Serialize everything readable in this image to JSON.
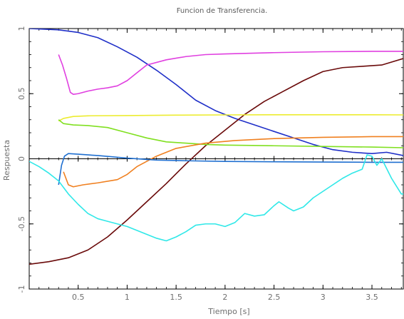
{
  "chart_data": {
    "type": "line",
    "title": "Funcion de Transferencia.",
    "xlabel": "Tiempo [s]",
    "ylabel": "Respuesta",
    "xlim": [
      0.0,
      3.82
    ],
    "ylim": [
      -1.0,
      1.0
    ],
    "xticks": [
      0.5,
      1,
      1.5,
      2,
      2.5,
      3,
      3.5
    ],
    "xtick_labels": [
      "0.5",
      "1",
      "1.5",
      "2",
      "2.5",
      "3",
      "3.5"
    ],
    "yticks": [
      -1,
      -0.5,
      0,
      0.5,
      1
    ],
    "ytick_labels": [
      "-1",
      "-0.5",
      "0",
      "0.5",
      "1"
    ],
    "grid": false,
    "zero_line": true,
    "series": [
      {
        "color": "#1f2fc8",
        "points": [
          [
            0.0,
            1.0
          ],
          [
            0.3,
            0.99
          ],
          [
            0.5,
            0.97
          ],
          [
            0.7,
            0.93
          ],
          [
            0.9,
            0.86
          ],
          [
            1.1,
            0.78
          ],
          [
            1.3,
            0.68
          ],
          [
            1.5,
            0.57
          ],
          [
            1.7,
            0.45
          ],
          [
            1.9,
            0.37
          ],
          [
            2.1,
            0.31
          ],
          [
            2.3,
            0.26
          ],
          [
            2.5,
            0.21
          ],
          [
            2.7,
            0.16
          ],
          [
            2.9,
            0.11
          ],
          [
            3.1,
            0.07
          ],
          [
            3.3,
            0.05
          ],
          [
            3.5,
            0.04
          ],
          [
            3.65,
            0.05
          ],
          [
            3.82,
            0.025
          ]
        ]
      },
      {
        "color": "#e040e0",
        "points": [
          [
            0.3,
            0.8
          ],
          [
            0.34,
            0.72
          ],
          [
            0.38,
            0.62
          ],
          [
            0.42,
            0.51
          ],
          [
            0.45,
            0.495
          ],
          [
            0.5,
            0.5
          ],
          [
            0.6,
            0.52
          ],
          [
            0.7,
            0.535
          ],
          [
            0.8,
            0.545
          ],
          [
            0.9,
            0.56
          ],
          [
            1.0,
            0.6
          ],
          [
            1.1,
            0.66
          ],
          [
            1.2,
            0.72
          ],
          [
            1.4,
            0.76
          ],
          [
            1.6,
            0.785
          ],
          [
            1.8,
            0.8
          ],
          [
            2.0,
            0.805
          ],
          [
            2.5,
            0.815
          ],
          [
            3.0,
            0.822
          ],
          [
            3.5,
            0.825
          ],
          [
            3.82,
            0.825
          ]
        ]
      },
      {
        "color": "#6a0a0a",
        "points": [
          [
            0.0,
            -0.81
          ],
          [
            0.2,
            -0.79
          ],
          [
            0.4,
            -0.76
          ],
          [
            0.6,
            -0.7
          ],
          [
            0.8,
            -0.6
          ],
          [
            1.0,
            -0.47
          ],
          [
            1.2,
            -0.33
          ],
          [
            1.4,
            -0.19
          ],
          [
            1.6,
            -0.04
          ],
          [
            1.8,
            0.1
          ],
          [
            2.0,
            0.22
          ],
          [
            2.2,
            0.34
          ],
          [
            2.4,
            0.44
          ],
          [
            2.6,
            0.52
          ],
          [
            2.8,
            0.6
          ],
          [
            3.0,
            0.67
          ],
          [
            3.2,
            0.7
          ],
          [
            3.4,
            0.71
          ],
          [
            3.6,
            0.72
          ],
          [
            3.82,
            0.77
          ]
        ]
      },
      {
        "color": "#ecec30",
        "points": [
          [
            0.3,
            0.29
          ],
          [
            0.35,
            0.31
          ],
          [
            0.45,
            0.325
          ],
          [
            0.6,
            0.33
          ],
          [
            1.0,
            0.332
          ],
          [
            1.5,
            0.335
          ],
          [
            2.0,
            0.337
          ],
          [
            2.5,
            0.338
          ],
          [
            3.0,
            0.338
          ],
          [
            3.5,
            0.338
          ],
          [
            3.82,
            0.337
          ]
        ]
      },
      {
        "color": "#80e020",
        "points": [
          [
            0.3,
            0.3
          ],
          [
            0.35,
            0.27
          ],
          [
            0.45,
            0.26
          ],
          [
            0.6,
            0.255
          ],
          [
            0.8,
            0.24
          ],
          [
            1.0,
            0.2
          ],
          [
            1.2,
            0.16
          ],
          [
            1.4,
            0.13
          ],
          [
            1.6,
            0.12
          ],
          [
            1.8,
            0.11
          ],
          [
            2.0,
            0.105
          ],
          [
            2.5,
            0.1
          ],
          [
            3.0,
            0.095
          ],
          [
            3.5,
            0.09
          ],
          [
            3.82,
            0.085
          ]
        ]
      },
      {
        "color": "#f08020",
        "points": [
          [
            0.35,
            -0.1
          ],
          [
            0.4,
            -0.2
          ],
          [
            0.45,
            -0.215
          ],
          [
            0.55,
            -0.2
          ],
          [
            0.7,
            -0.185
          ],
          [
            0.9,
            -0.16
          ],
          [
            1.0,
            -0.12
          ],
          [
            1.1,
            -0.06
          ],
          [
            1.3,
            0.02
          ],
          [
            1.5,
            0.08
          ],
          [
            1.8,
            0.12
          ],
          [
            2.1,
            0.14
          ],
          [
            2.5,
            0.155
          ],
          [
            3.0,
            0.165
          ],
          [
            3.5,
            0.17
          ],
          [
            3.82,
            0.17
          ]
        ]
      },
      {
        "color": "#1f6fd0",
        "points": [
          [
            0.3,
            -0.2
          ],
          [
            0.33,
            -0.05
          ],
          [
            0.36,
            0.02
          ],
          [
            0.4,
            0.04
          ],
          [
            0.5,
            0.035
          ],
          [
            0.7,
            0.025
          ],
          [
            1.0,
            0.005
          ],
          [
            1.3,
            -0.01
          ],
          [
            1.6,
            -0.015
          ],
          [
            2.0,
            -0.02
          ],
          [
            2.5,
            -0.023
          ],
          [
            3.0,
            -0.025
          ],
          [
            3.5,
            -0.027
          ],
          [
            3.82,
            -0.027
          ]
        ]
      },
      {
        "color": "#30e8e8",
        "points": [
          [
            0.0,
            -0.02
          ],
          [
            0.1,
            -0.06
          ],
          [
            0.2,
            -0.11
          ],
          [
            0.3,
            -0.17
          ],
          [
            0.4,
            -0.27
          ],
          [
            0.5,
            -0.35
          ],
          [
            0.6,
            -0.42
          ],
          [
            0.7,
            -0.46
          ],
          [
            0.8,
            -0.48
          ],
          [
            0.9,
            -0.5
          ],
          [
            1.0,
            -0.52
          ],
          [
            1.1,
            -0.55
          ],
          [
            1.2,
            -0.58
          ],
          [
            1.3,
            -0.61
          ],
          [
            1.4,
            -0.63
          ],
          [
            1.5,
            -0.6
          ],
          [
            1.6,
            -0.56
          ],
          [
            1.7,
            -0.51
          ],
          [
            1.8,
            -0.5
          ],
          [
            1.9,
            -0.5
          ],
          [
            2.0,
            -0.52
          ],
          [
            2.1,
            -0.49
          ],
          [
            2.2,
            -0.42
          ],
          [
            2.3,
            -0.44
          ],
          [
            2.4,
            -0.43
          ],
          [
            2.5,
            -0.36
          ],
          [
            2.55,
            -0.33
          ],
          [
            2.65,
            -0.38
          ],
          [
            2.7,
            -0.4
          ],
          [
            2.8,
            -0.37
          ],
          [
            2.9,
            -0.3
          ],
          [
            3.0,
            -0.25
          ],
          [
            3.1,
            -0.2
          ],
          [
            3.2,
            -0.15
          ],
          [
            3.3,
            -0.11
          ],
          [
            3.4,
            -0.08
          ],
          [
            3.45,
            0.03
          ],
          [
            3.5,
            0.02
          ],
          [
            3.55,
            -0.05
          ],
          [
            3.6,
            0.0
          ],
          [
            3.7,
            -0.15
          ],
          [
            3.8,
            -0.27
          ],
          [
            3.82,
            -0.27
          ]
        ]
      }
    ]
  }
}
